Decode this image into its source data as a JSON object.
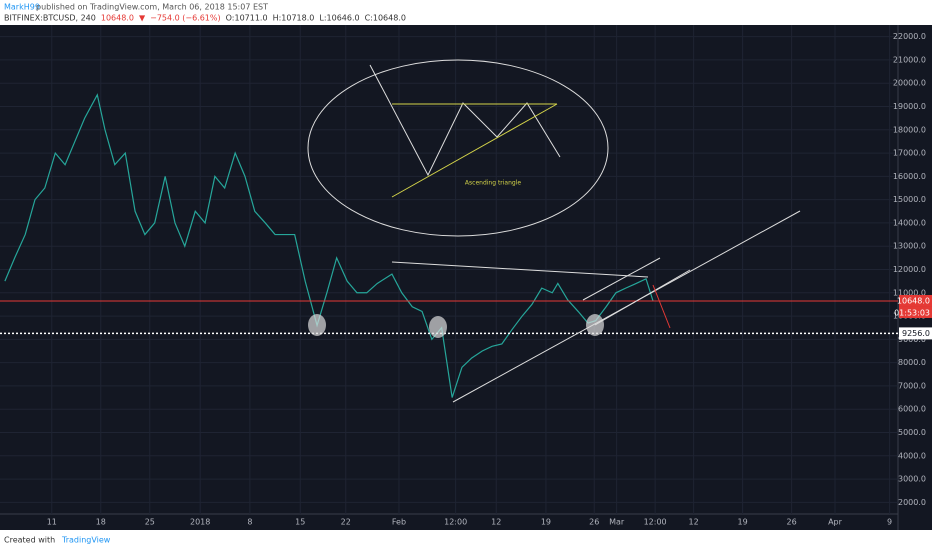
{
  "header": {
    "author": "MarkH99",
    "published": " published on TradingView.com, March 06, 2018 15:07 EST"
  },
  "legend": {
    "symbol": "BITFINEX:BTCUSD, 240",
    "last": "10648.0",
    "arrow": "▼",
    "change": "−754.0 (−6.61%)",
    "open": "O:10711.0",
    "high": "H:10718.0",
    "low": "L:10646.0",
    "close": "C:10648.0"
  },
  "chart_data": {
    "type": "line",
    "color": "#26a69a",
    "x": [
      0.7,
      2.1,
      3.6,
      5,
      6.4,
      7.9,
      9.3,
      10.7,
      12.1,
      13.9,
      15,
      16.4,
      17.9,
      19.3,
      20.7,
      22.1,
      23.6,
      25,
      26.4,
      27.9,
      29.3,
      30.7,
      32.1,
      33.6,
      35,
      36.4,
      37.9,
      39.3,
      40.7,
      42.1,
      43.6,
      45.3,
      46.7,
      48.1,
      49.6,
      51,
      52.4,
      53.9,
      56,
      57.4,
      58.9,
      60.3,
      61.7,
      63.1,
      64.6,
      66,
      67.4,
      68.9,
      70.3,
      71.7,
      73.1,
      74.6,
      76,
      77.4,
      78.9,
      79.7,
      81.1,
      82.6,
      84,
      85.1,
      86.6,
      88,
      89.4,
      90.9,
      92.3,
      93.3
    ],
    "values": [
      11500,
      12500,
      13500,
      15000,
      15500,
      17000,
      16500,
      17500,
      18500,
      19500,
      18000,
      16500,
      17000,
      14500,
      13500,
      14000,
      16000,
      14000,
      13000,
      14500,
      14000,
      16000,
      15500,
      17000,
      16000,
      14500,
      14000,
      13500,
      13500,
      13500,
      11500,
      9600,
      11000,
      12500,
      11500,
      11000,
      11000,
      11400,
      11800,
      11000,
      10400,
      10200,
      9000,
      9500,
      6500,
      7800,
      8200,
      8500,
      8700,
      8800,
      9400,
      10000,
      10500,
      11200,
      11000,
      11400,
      10700,
      10200,
      9700,
      9800,
      10400,
      11000,
      11200,
      11400,
      11600,
      10648
    ],
    "xlim": [
      0,
      128.3
    ],
    "ylim": [
      1500,
      22500
    ],
    "xticks": [
      {
        "value": 7.4,
        "label": "11"
      },
      {
        "value": 14.4,
        "label": "18"
      },
      {
        "value": 21.4,
        "label": "25"
      },
      {
        "value": 28.6,
        "label": "2018"
      },
      {
        "value": 35.7,
        "label": "8"
      },
      {
        "value": 42.9,
        "label": "15"
      },
      {
        "value": 49.4,
        "label": "22"
      },
      {
        "value": 57,
        "label": "Feb"
      },
      {
        "value": 65.1,
        "label": "12:00"
      },
      {
        "value": 70.9,
        "label": "12"
      },
      {
        "value": 78,
        "label": "19"
      },
      {
        "value": 84.9,
        "label": "26"
      },
      {
        "value": 88.1,
        "label": "Mar"
      },
      {
        "value": 93.6,
        "label": "12:00"
      },
      {
        "value": 99.1,
        "label": "12"
      },
      {
        "value": 106.1,
        "label": "19"
      },
      {
        "value": 113.1,
        "label": "26"
      },
      {
        "value": 119.3,
        "label": "Apr"
      },
      {
        "value": 127.1,
        "label": "9"
      }
    ],
    "yticks": [
      {
        "value": 2000,
        "label": "2000.0"
      },
      {
        "value": 3000,
        "label": "3000.0"
      },
      {
        "value": 4000,
        "label": "4000.0"
      },
      {
        "value": 5000,
        "label": "5000.0"
      },
      {
        "value": 6000,
        "label": "6000.0"
      },
      {
        "value": 7000,
        "label": "7000.0"
      },
      {
        "value": 8000,
        "label": "8000.0"
      },
      {
        "value": 9000,
        "label": "9000.0"
      },
      {
        "value": 10000,
        "label": "10000.0"
      },
      {
        "value": 11000,
        "label": "11000.0"
      },
      {
        "value": 12000,
        "label": "12000.0"
      },
      {
        "value": 13000,
        "label": "13000.0"
      },
      {
        "value": 14000,
        "label": "14000.0"
      },
      {
        "value": 15000,
        "label": "15000.0"
      },
      {
        "value": 16000,
        "label": "16000.0"
      },
      {
        "value": 17000,
        "label": "17000.0"
      },
      {
        "value": 18000,
        "label": "18000.0"
      },
      {
        "value": 19000,
        "label": "19000.0"
      },
      {
        "value": 20000,
        "label": "20000.0"
      },
      {
        "value": 21000,
        "label": "21000.0"
      },
      {
        "value": 22000,
        "label": "22000.0"
      }
    ],
    "grid": true,
    "price_line": {
      "value": 10648,
      "label": "10648.0"
    },
    "countdown": "01:53:03",
    "support_line": {
      "value": 9256,
      "label": "9256.0"
    },
    "annotation": "Ascending triangle"
  },
  "footer": {
    "created": "Created with",
    "brand": "TradingView"
  }
}
